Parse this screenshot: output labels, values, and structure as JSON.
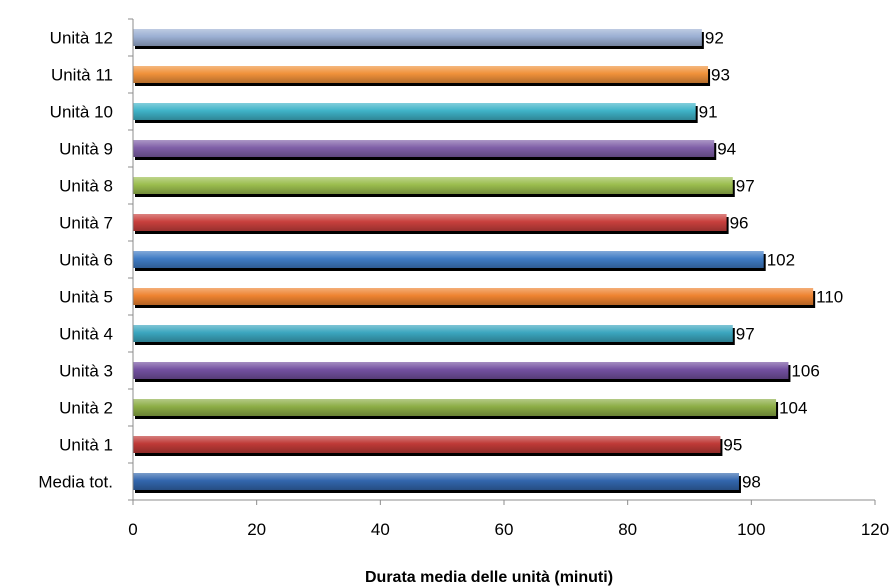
{
  "chart_data": {
    "type": "bar",
    "orientation": "horizontal",
    "title": "",
    "xlabel": "Durata media delle unità (minuti)",
    "ylabel": "",
    "xlim": [
      0,
      120
    ],
    "xticks": [
      0,
      20,
      40,
      60,
      80,
      100,
      120
    ],
    "grid": false,
    "legend": "none",
    "categories": [
      "Unità 12",
      "Unità 11",
      "Unità 10",
      "Unità 9",
      "Unità 8",
      "Unità 7",
      "Unità 6",
      "Unità 5",
      "Unità 4",
      "Unità 3",
      "Unità 2",
      "Unità 1",
      "Media tot."
    ],
    "values": [
      92,
      93,
      91,
      94,
      97,
      96,
      102,
      110,
      97,
      106,
      104,
      95,
      98
    ],
    "colors": [
      "#9bafd3",
      "#f0913a",
      "#3fb3c8",
      "#7f5fa8",
      "#9bbd4e",
      "#c9403d",
      "#3f7bc4",
      "#ee8330",
      "#3ba6bf",
      "#7350a0",
      "#8cad45",
      "#bf3a37",
      "#3266ad"
    ]
  }
}
